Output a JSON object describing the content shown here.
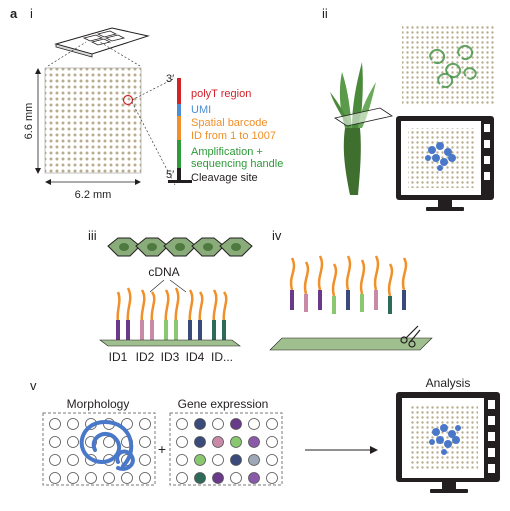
{
  "panel_letter": "a",
  "panels": {
    "i": "i",
    "ii": "ii",
    "iii": "iii",
    "iv": "iv",
    "v": "v"
  },
  "panel_i": {
    "dim_vertical": "6.6 mm",
    "dim_horizontal": "6.2 mm",
    "end_3": "3′",
    "end_5": "5′",
    "segments": [
      {
        "label": "polyT region",
        "color": "#d2232a"
      },
      {
        "label": "UMI",
        "color": "#4a8fd4"
      },
      {
        "label": "Spatial barcode",
        "color": "#f0902a"
      },
      {
        "label": "ID from 1 to 1007",
        "color": "#f0902a"
      },
      {
        "label": "Amplification +",
        "color": "#2e9a3a"
      },
      {
        "label": "sequencing handle",
        "color": "#2e9a3a"
      },
      {
        "label": "Cleavage site",
        "color": "#231f20"
      }
    ]
  },
  "panel_iii": {
    "cdna_label": "cDNA",
    "ids": [
      "ID1",
      "ID2",
      "ID3",
      "ID4",
      "ID..."
    ]
  },
  "panel_v": {
    "morphology_label": "Morphology",
    "gene_expression_label": "Gene expression",
    "plus": "+",
    "analysis_label": "Analysis"
  },
  "colors": {
    "array_dot": "#b9ad8f",
    "tissue_green": "#3f8f3f",
    "stain_blue": "#4a78c8",
    "monitor_black": "#231f20",
    "slide_green": "#9fbf8f"
  }
}
